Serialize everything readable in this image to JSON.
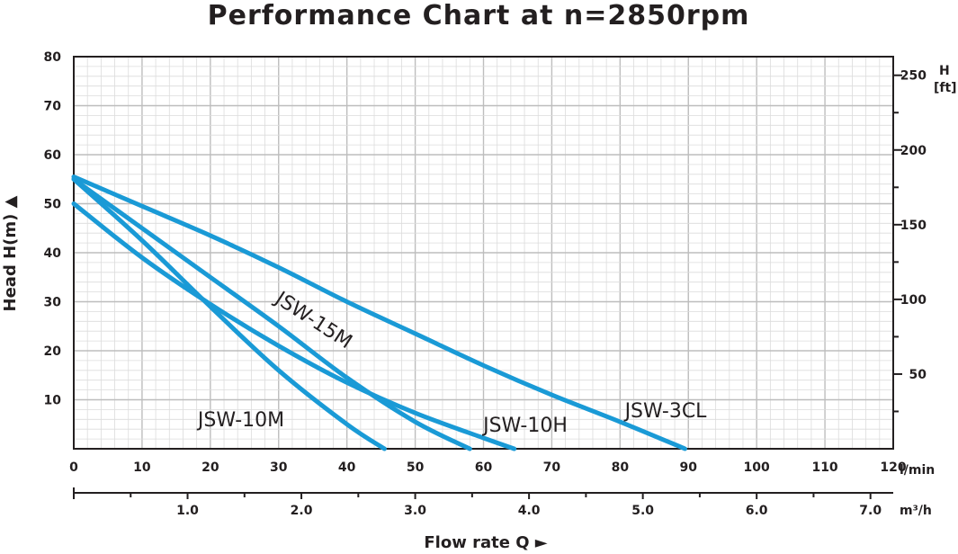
{
  "chart_data": {
    "type": "line",
    "title": "Performance Chart at n=2850rpm",
    "ylabel": "Head H(m) ▲",
    "xlabel": "Flow rate Q ►",
    "x_unit": "l/min",
    "x2_unit": "m³/h",
    "y2_unit_line1": "H",
    "y2_unit_line2": "[ft]",
    "xlim": [
      0,
      120
    ],
    "ylim": [
      0,
      80
    ],
    "x_ticks": [
      "0",
      "10",
      "20",
      "30",
      "40",
      "50",
      "60",
      "70",
      "80",
      "90",
      "100",
      "110",
      "120"
    ],
    "y_ticks": [
      "10",
      "20",
      "30",
      "40",
      "50",
      "60",
      "70",
      "80"
    ],
    "y2_ticks": [
      "50",
      "100",
      "150",
      "200",
      "250"
    ],
    "x2_ticks": [
      "1.0",
      "2.0",
      "3.0",
      "4.0",
      "5.0",
      "6.0",
      "7.0"
    ],
    "grid": true,
    "line_color": "#1a9ad6",
    "series": [
      {
        "name": "JSW-10M",
        "x": [
          0,
          10,
          20,
          30,
          40,
          45.5
        ],
        "y": [
          55,
          42.5,
          29,
          16,
          5,
          0
        ]
      },
      {
        "name": "JSW-15M",
        "x": [
          0,
          10,
          20,
          30,
          40,
          50,
          58
        ],
        "y": [
          55,
          45,
          35,
          25,
          14.5,
          5.5,
          0
        ]
      },
      {
        "name": "JSW-10H",
        "x": [
          0,
          10,
          20,
          30,
          40,
          50,
          60,
          64.5
        ],
        "y": [
          50,
          39,
          29.5,
          21,
          13.5,
          7.3,
          2.2,
          0
        ]
      },
      {
        "name": "JSW-3CL",
        "x": [
          0,
          10,
          20,
          30,
          40,
          50,
          60,
          70,
          80,
          89.5
        ],
        "y": [
          55.5,
          49.5,
          43.5,
          37,
          30,
          23.5,
          17,
          11,
          5.5,
          0
        ]
      }
    ]
  }
}
